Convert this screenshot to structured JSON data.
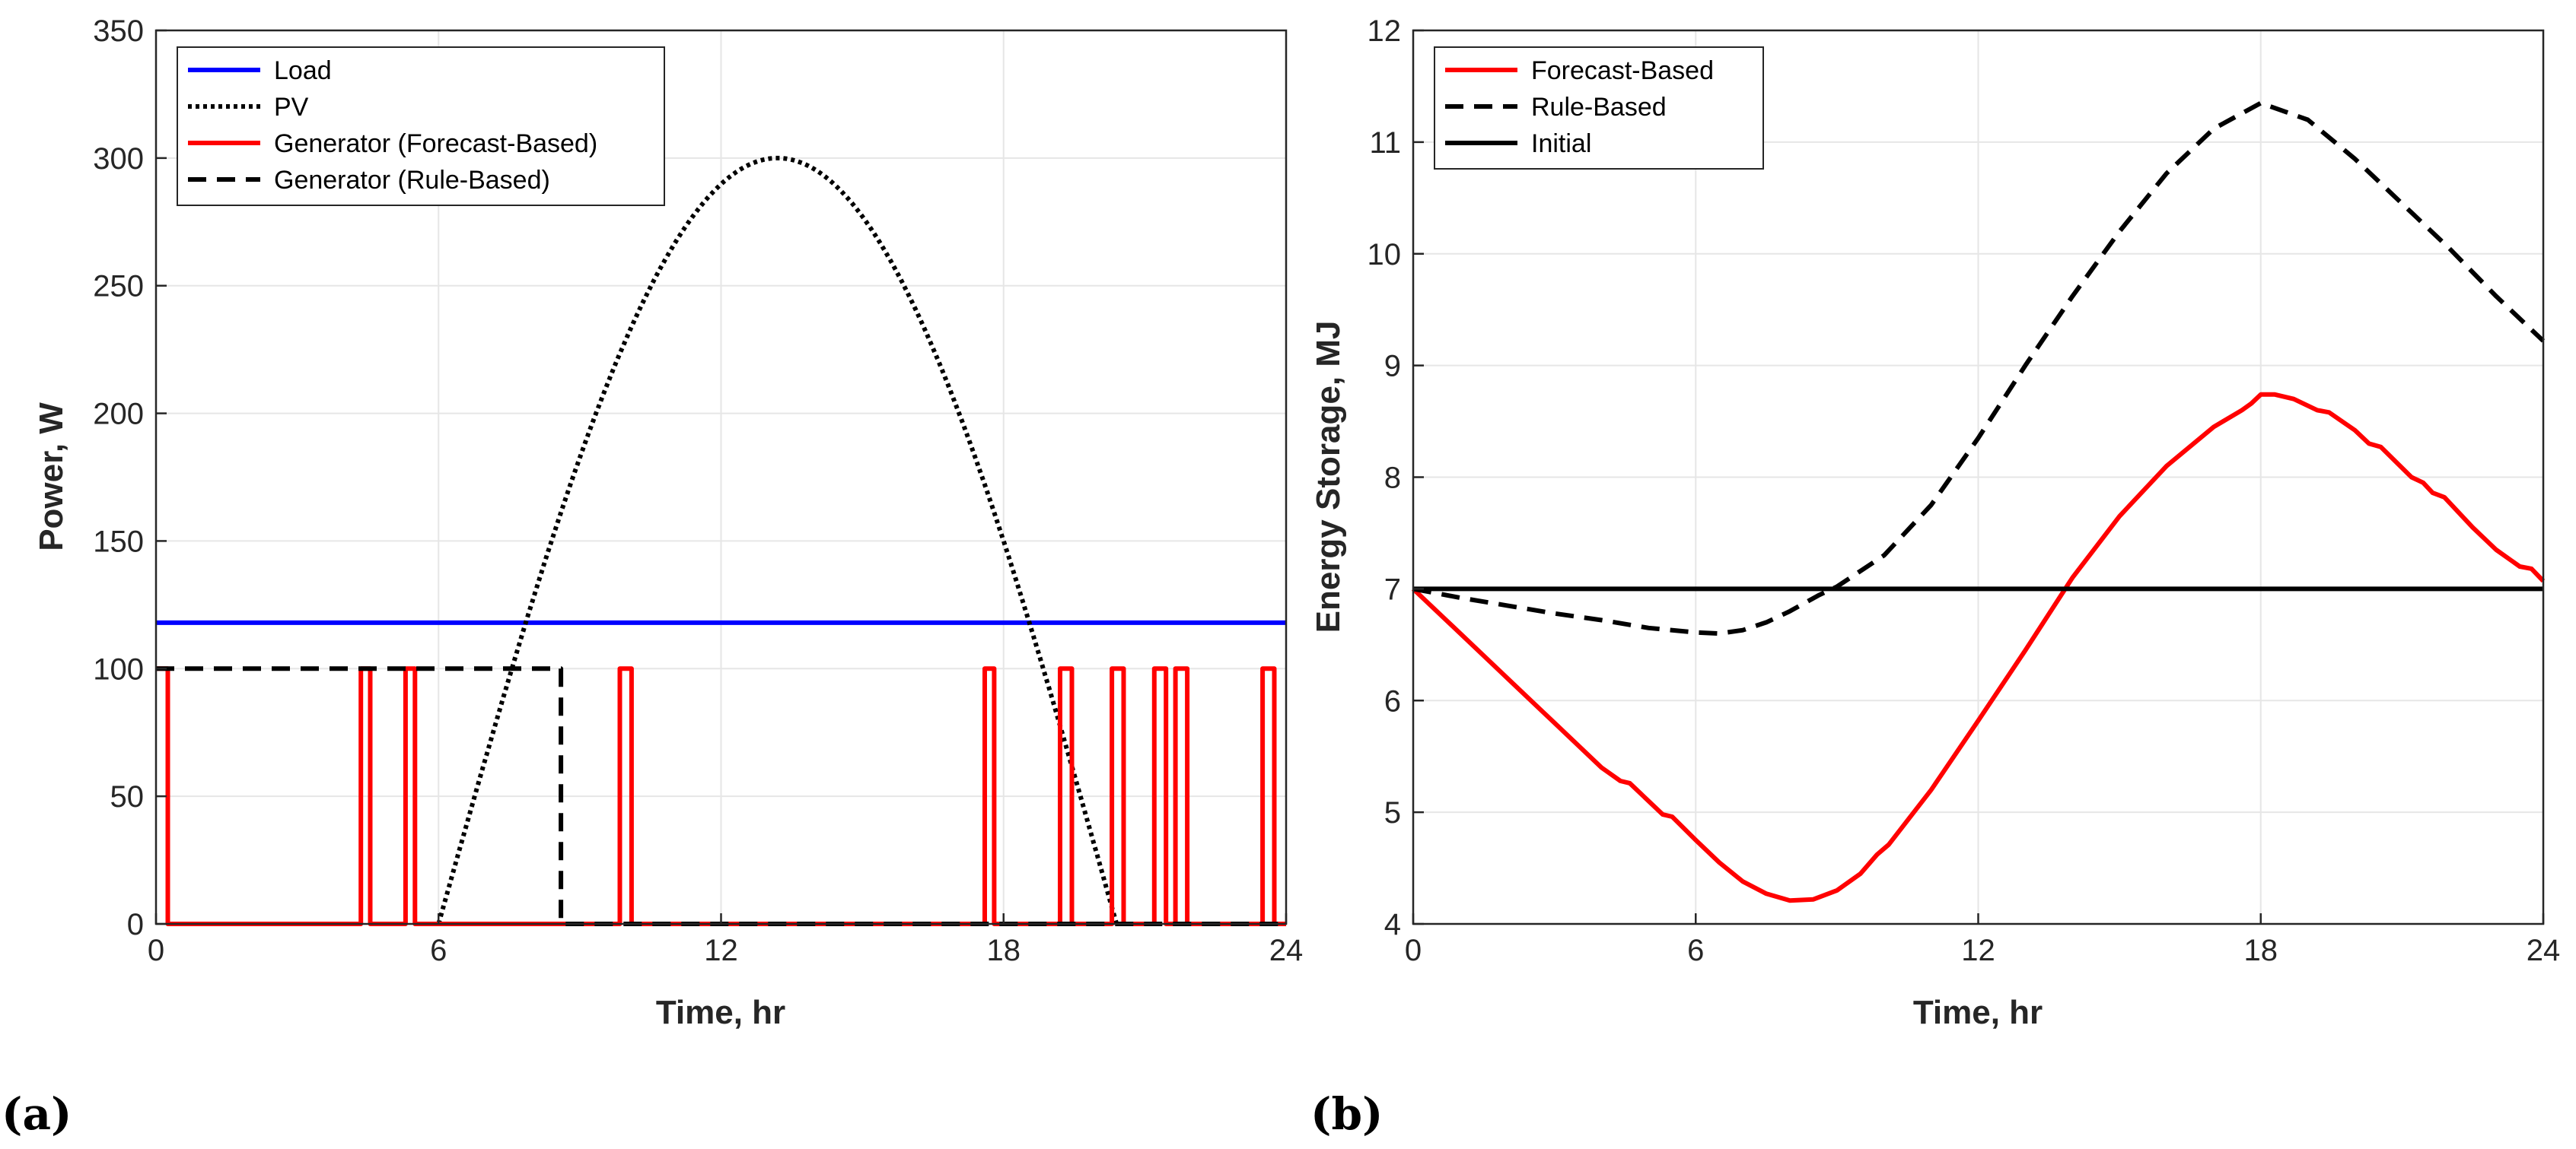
{
  "chart_data": [
    {
      "type": "line",
      "panel_label": "(a)",
      "xlabel": "Time, hr",
      "ylabel": "Power, W",
      "xlim": [
        0,
        24
      ],
      "ylim": [
        0,
        350
      ],
      "xticks": [
        0,
        6,
        12,
        18,
        24
      ],
      "yticks": [
        0,
        50,
        100,
        150,
        200,
        250,
        300,
        350
      ],
      "grid": true,
      "legend_position": "top-left",
      "series": [
        {
          "name": "Load",
          "style": "solid",
          "color": "#0000ff",
          "x": [
            0,
            24
          ],
          "y": [
            118,
            118
          ]
        },
        {
          "name": "PV",
          "style": "dotted",
          "color": "#000000",
          "curve": "sine",
          "x": [
            6,
            7,
            8,
            9,
            10,
            11,
            12,
            13.2,
            14,
            15,
            16,
            17,
            18,
            19,
            20,
            20.4
          ],
          "y": [
            0,
            62,
            121,
            175,
            222,
            260,
            288,
            300,
            294,
            273,
            237,
            189,
            130,
            64,
            6,
            0
          ]
        },
        {
          "name": "Generator (Forecast-Based)",
          "style": "solid",
          "color": "#ff0000",
          "x": [
            0,
            0.25,
            0.25,
            4.35,
            4.35,
            4.55,
            4.55,
            5.3,
            5.3,
            5.5,
            5.5,
            9.85,
            9.85,
            10.1,
            10.1,
            17.6,
            17.6,
            17.8,
            17.8,
            19.2,
            19.2,
            19.45,
            19.45,
            20.3,
            20.3,
            20.55,
            20.55,
            21.2,
            21.2,
            21.45,
            21.45,
            21.65,
            21.65,
            21.9,
            21.9,
            23.5,
            23.5,
            23.75,
            23.75,
            24
          ],
          "y": [
            100,
            100,
            0,
            0,
            100,
            100,
            0,
            0,
            100,
            100,
            0,
            0,
            100,
            100,
            0,
            0,
            100,
            100,
            0,
            0,
            100,
            100,
            0,
            0,
            100,
            100,
            0,
            0,
            100,
            100,
            0,
            0,
            100,
            100,
            0,
            0,
            100,
            100,
            0,
            0
          ]
        },
        {
          "name": "Generator (Rule-Based)",
          "style": "dashed",
          "color": "#000000",
          "x": [
            0,
            8.6,
            8.6,
            24
          ],
          "y": [
            100,
            100,
            0,
            0
          ]
        }
      ]
    },
    {
      "type": "line",
      "panel_label": "(b)",
      "xlabel": "Time, hr",
      "ylabel": "Energy Storage, MJ",
      "xlim": [
        0,
        24
      ],
      "ylim": [
        4,
        12
      ],
      "xticks": [
        0,
        6,
        12,
        18,
        24
      ],
      "yticks": [
        4,
        5,
        6,
        7,
        8,
        9,
        10,
        11,
        12
      ],
      "grid": true,
      "legend_position": "top-left",
      "series": [
        {
          "name": "Forecast-Based",
          "style": "solid",
          "color": "#ff0000",
          "x": [
            0,
            1,
            2,
            3,
            4,
            4.4,
            4.6,
            5.3,
            5.5,
            6,
            6.5,
            7,
            7.5,
            8,
            8.5,
            9,
            9.5,
            9.85,
            10.1,
            11,
            12,
            13,
            14,
            15,
            16,
            17,
            17.6,
            17.8,
            18,
            18.3,
            18.7,
            19.2,
            19.45,
            20,
            20.3,
            20.55,
            21.2,
            21.45,
            21.65,
            21.9,
            22.5,
            23,
            23.5,
            23.75,
            24
          ],
          "y": [
            7.0,
            6.6,
            6.2,
            5.8,
            5.4,
            5.28,
            5.26,
            4.98,
            4.96,
            4.75,
            4.55,
            4.38,
            4.27,
            4.21,
            4.22,
            4.3,
            4.45,
            4.62,
            4.71,
            5.2,
            5.82,
            6.45,
            7.1,
            7.65,
            8.1,
            8.45,
            8.6,
            8.66,
            8.74,
            8.74,
            8.7,
            8.6,
            8.58,
            8.42,
            8.3,
            8.27,
            8.0,
            7.95,
            7.86,
            7.82,
            7.55,
            7.35,
            7.2,
            7.18,
            7.07
          ]
        },
        {
          "name": "Rule-Based",
          "style": "dashed",
          "color": "#000000",
          "x": [
            0,
            1,
            2,
            3,
            4,
            5,
            6,
            6.5,
            7,
            7.5,
            8,
            8.6,
            9,
            10,
            11,
            12,
            13,
            14,
            15,
            16,
            17,
            18,
            19,
            20,
            21,
            22,
            23,
            24
          ],
          "y": [
            7.0,
            6.92,
            6.85,
            6.78,
            6.72,
            6.65,
            6.61,
            6.6,
            6.63,
            6.7,
            6.8,
            6.94,
            7.02,
            7.3,
            7.75,
            8.35,
            9.0,
            9.62,
            10.2,
            10.72,
            11.12,
            11.35,
            11.2,
            10.85,
            10.45,
            10.05,
            9.62,
            9.22
          ]
        },
        {
          "name": "Initial",
          "style": "solid",
          "color": "#000000",
          "x": [
            0,
            24
          ],
          "y": [
            7,
            7
          ]
        }
      ]
    }
  ]
}
